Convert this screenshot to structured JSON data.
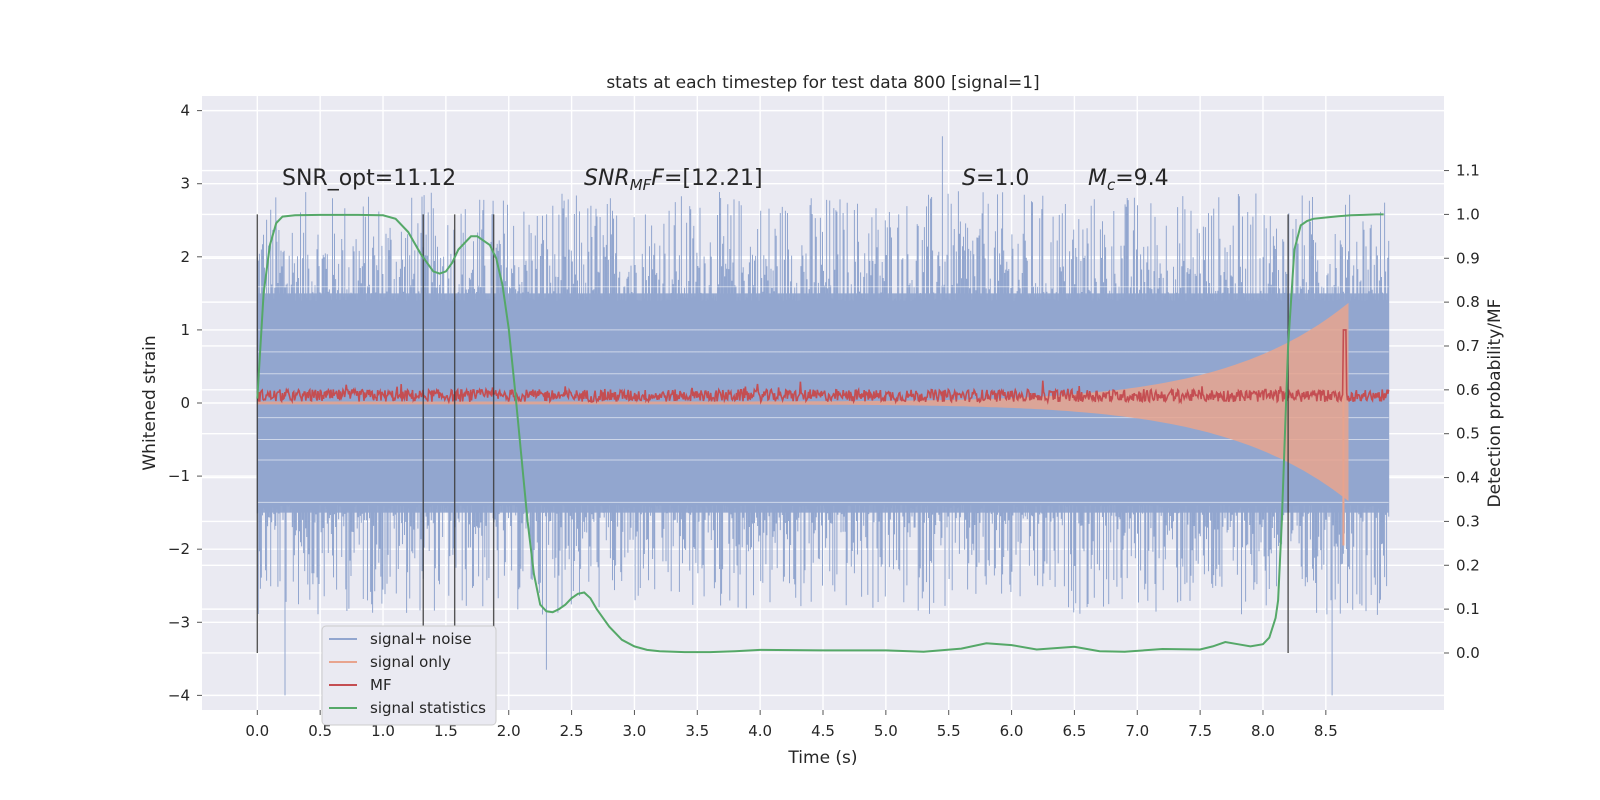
{
  "chart_data": {
    "type": "line",
    "title": "stats at each timestep for test data 800 [signal=1]",
    "xlabel": "Time (s)",
    "ylabel": "Whitened strain",
    "ylabel_right": "Detection probability/MF",
    "xlim": [
      -0.44,
      9.44
    ],
    "ylim": [
      -4.2,
      4.2
    ],
    "ylim_right": [
      -0.13,
      1.27
    ],
    "xticks": [
      "0.0",
      "0.5",
      "1.0",
      "1.5",
      "2.0",
      "2.5",
      "3.0",
      "3.5",
      "4.0",
      "4.5",
      "5.0",
      "5.5",
      "6.0",
      "6.5",
      "7.0",
      "7.5",
      "8.0",
      "8.5"
    ],
    "yticks": [
      "4",
      "3",
      "2",
      "1",
      "0",
      "−1",
      "−2",
      "−3",
      "−4"
    ],
    "yticks_right": [
      "1.1",
      "1.0",
      "0.9",
      "0.8",
      "0.7",
      "0.6",
      "0.5",
      "0.4",
      "0.3",
      "0.2",
      "0.1",
      "0.0"
    ],
    "grid": true,
    "legend_position": "bottom-left",
    "annotations": {
      "snr_opt": "SNR_opt=11.12",
      "snr_mf": "=[12.21]",
      "snr_mf_sym": "SNR",
      "snr_mf_sub": "MF",
      "s_sym": "S",
      "s_val": "=1.0",
      "mc_sym": "M",
      "mc_sub": "c",
      "mc_val": "=9.4"
    },
    "vlines": [
      0.0,
      1.32,
      1.57,
      1.88,
      8.2
    ],
    "series": [
      {
        "name": "signal+ noise",
        "color": "#92a6cf",
        "band": {
          "x_start": 0.0,
          "x_end": 9.0,
          "core_amplitude": 1.5,
          "spike_max": 3.65,
          "spike_min": -4.0
        }
      },
      {
        "name": "signal only",
        "color": "#e8a48e",
        "chirp": {
          "x_start": 0.0,
          "x_end": 8.68,
          "end_amplitude": 1.35
        }
      },
      {
        "name": "MF",
        "color": "#c44e52",
        "mean": 0.1,
        "peak": {
          "x": 8.65,
          "y": 1.0
        }
      },
      {
        "name": "signal statistics",
        "color": "#55a868",
        "axis": "right",
        "x": [
          0.0,
          0.05,
          0.1,
          0.15,
          0.2,
          0.3,
          0.5,
          0.8,
          1.0,
          1.1,
          1.2,
          1.3,
          1.35,
          1.4,
          1.45,
          1.5,
          1.55,
          1.6,
          1.7,
          1.75,
          1.8,
          1.85,
          1.9,
          1.95,
          2.0,
          2.05,
          2.1,
          2.15,
          2.2,
          2.25,
          2.3,
          2.35,
          2.4,
          2.45,
          2.5,
          2.55,
          2.6,
          2.65,
          2.7,
          2.75,
          2.8,
          2.9,
          3.0,
          3.1,
          3.2,
          3.4,
          3.6,
          3.8,
          4.0,
          4.5,
          5.0,
          5.3,
          5.6,
          5.8,
          6.0,
          6.2,
          6.5,
          6.7,
          6.9,
          7.2,
          7.5,
          7.6,
          7.7,
          7.8,
          7.9,
          8.0,
          8.05,
          8.1,
          8.12,
          8.15,
          8.2,
          8.25,
          8.3,
          8.35,
          8.4,
          8.5,
          8.6,
          8.7,
          8.8,
          8.9,
          8.96
        ],
        "y": [
          0.58,
          0.82,
          0.93,
          0.98,
          0.995,
          0.998,
          0.999,
          0.999,
          0.998,
          0.99,
          0.96,
          0.91,
          0.89,
          0.87,
          0.865,
          0.87,
          0.89,
          0.92,
          0.95,
          0.95,
          0.94,
          0.93,
          0.9,
          0.84,
          0.74,
          0.6,
          0.45,
          0.3,
          0.18,
          0.11,
          0.095,
          0.093,
          0.1,
          0.11,
          0.125,
          0.135,
          0.138,
          0.125,
          0.1,
          0.08,
          0.06,
          0.03,
          0.015,
          0.007,
          0.004,
          0.002,
          0.002,
          0.004,
          0.007,
          0.006,
          0.006,
          0.003,
          0.01,
          0.022,
          0.018,
          0.008,
          0.014,
          0.004,
          0.003,
          0.009,
          0.008,
          0.015,
          0.025,
          0.02,
          0.015,
          0.02,
          0.035,
          0.08,
          0.12,
          0.3,
          0.7,
          0.92,
          0.975,
          0.985,
          0.99,
          0.993,
          0.996,
          0.998,
          0.999,
          1.0,
          1.0
        ]
      }
    ]
  }
}
